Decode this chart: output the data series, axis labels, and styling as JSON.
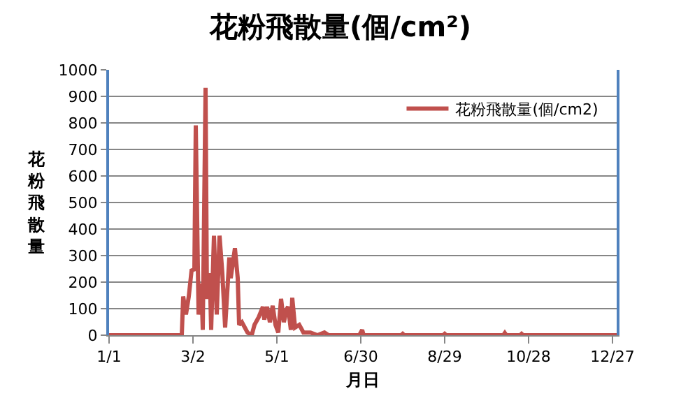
{
  "chart_data": {
    "type": "line",
    "title": "花粉飛散量(個/cm²)",
    "xlabel": "月日",
    "ylabel": "花粉飛散量",
    "x": [
      "--01-01",
      "--02-22",
      "--02-23",
      "--02-25",
      "--02-27",
      "--03-01",
      "--03-03",
      "--03-04",
      "--03-06",
      "--03-08",
      "--03-09",
      "--03-11",
      "--03-12",
      "--03-14",
      "--03-15",
      "--03-17",
      "--03-19",
      "--03-21",
      "--03-23",
      "--03-25",
      "--03-28",
      "--03-29",
      "--04-01",
      "--04-03",
      "--04-04",
      "--04-06",
      "--04-10",
      "--04-13",
      "--04-15",
      "--04-18",
      "--04-21",
      "--04-22",
      "--04-24",
      "--04-26",
      "--04-28",
      "--04-30",
      "--05-02",
      "--05-04",
      "--05-06",
      "--05-08",
      "--05-09",
      "--05-11",
      "--05-12",
      "--05-14",
      "--05-17",
      "--05-20",
      "--05-25",
      "--05-30",
      "--06-04",
      "--06-07",
      "--06-29",
      "--07-01",
      "--07-02",
      "--07-29",
      "--07-30",
      "--07-31",
      "--08-28",
      "--08-29",
      "--08-30",
      "--10-10",
      "--10-11",
      "--10-12",
      "--10-22",
      "--10-23",
      "--10-24",
      "--12-30"
    ],
    "series": [
      {
        "name": "花粉飛散量(個/cm2)",
        "color": "#c0504d",
        "values": [
          0,
          0,
          146,
          78,
          146,
          244,
          248,
          791,
          78,
          195,
          20,
          932,
          137,
          234,
          20,
          375,
          78,
          375,
          234,
          29,
          293,
          215,
          328,
          215,
          39,
          49,
          10,
          0,
          39,
          68,
          107,
          59,
          107,
          49,
          111,
          39,
          10,
          137,
          49,
          98,
          107,
          20,
          141,
          29,
          39,
          10,
          10,
          0,
          10,
          0,
          0,
          20,
          0,
          0,
          5,
          0,
          0,
          5,
          0,
          0,
          8,
          0,
          0,
          5,
          0,
          0
        ]
      }
    ],
    "xlim": [
      "--01-01",
      "--12-30"
    ],
    "xticks": [
      {
        "value": "--01-01",
        "label": "1/1"
      },
      {
        "value": "--03-02",
        "label": "3/2"
      },
      {
        "value": "--05-01",
        "label": "5/1"
      },
      {
        "value": "--06-30",
        "label": "6/30"
      },
      {
        "value": "--08-29",
        "label": "8/29"
      },
      {
        "value": "--10-28",
        "label": "10/28"
      },
      {
        "value": "--12-27",
        "label": "12/27"
      }
    ],
    "ylim": [
      0,
      1000
    ],
    "yticks": [
      0,
      100,
      200,
      300,
      400,
      500,
      600,
      700,
      800,
      900,
      1000
    ],
    "grid": "y",
    "legend": "top right",
    "marker": "none",
    "line_style": "solid"
  }
}
